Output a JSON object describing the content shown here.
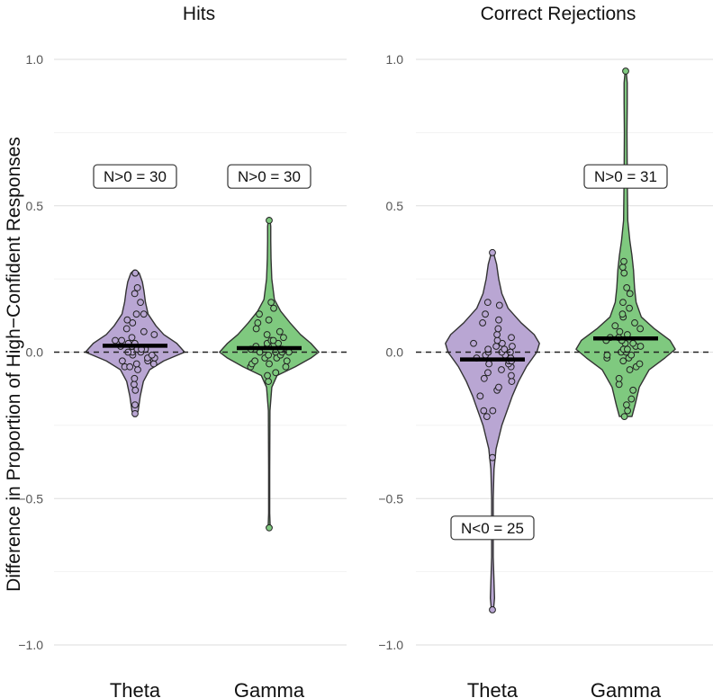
{
  "chart_data": {
    "type": "violin",
    "ylabel": "Difference in Proportion of High−Confident Responses",
    "ylim": [
      -1.0,
      1.0
    ],
    "yticks": [
      1.0,
      0.5,
      0.0,
      -0.5,
      -1.0
    ],
    "ytick_labels": [
      "1.0",
      "0.5",
      "0.0",
      "−0.5",
      "−1.0"
    ],
    "reference_line": 0,
    "colors": {
      "Theta": "#b9a6d3",
      "Gamma": "#7fc97f"
    },
    "panels": [
      {
        "title": "Hits",
        "groups": [
          {
            "name": "Theta",
            "mean": 0.022,
            "annotation": "N>0 =  30",
            "annotation_y": 0.6,
            "density": [
              [
                -0.22,
                0.02
              ],
              [
                -0.2,
                0.06
              ],
              [
                -0.15,
                0.1
              ],
              [
                -0.1,
                0.16
              ],
              [
                -0.06,
                0.28
              ],
              [
                -0.03,
                0.55
              ],
              [
                0.0,
                0.95
              ],
              [
                0.03,
                0.8
              ],
              [
                0.06,
                0.55
              ],
              [
                0.09,
                0.4
              ],
              [
                0.13,
                0.25
              ],
              [
                0.17,
                0.2
              ],
              [
                0.21,
                0.17
              ],
              [
                0.24,
                0.14
              ],
              [
                0.27,
                0.08
              ],
              [
                0.28,
                0.02
              ]
            ],
            "points": [
              -0.21,
              -0.18,
              -0.13,
              -0.11,
              -0.09,
              -0.06,
              -0.05,
              -0.05,
              -0.04,
              -0.04,
              -0.03,
              -0.03,
              -0.02,
              -0.02,
              -0.01,
              -0.01,
              0.0,
              0.0,
              0.0,
              0.01,
              0.01,
              0.01,
              0.02,
              0.02,
              0.03,
              0.03,
              0.04,
              0.04,
              0.05,
              0.06,
              0.07,
              0.08,
              0.1,
              0.11,
              0.13,
              0.13,
              0.17,
              0.2,
              0.22,
              0.27,
              0.27
            ]
          },
          {
            "name": "Gamma",
            "mean": 0.014,
            "annotation": "N>0 =  30",
            "annotation_y": 0.6,
            "density": [
              [
                -0.6,
                0.02
              ],
              [
                -0.55,
                0.01
              ],
              [
                -0.4,
                0.01
              ],
              [
                -0.2,
                0.015
              ],
              [
                -0.12,
                0.05
              ],
              [
                -0.08,
                0.15
              ],
              [
                -0.05,
                0.5
              ],
              [
                -0.02,
                0.8
              ],
              [
                0.0,
                0.95
              ],
              [
                0.03,
                0.8
              ],
              [
                0.06,
                0.6
              ],
              [
                0.1,
                0.4
              ],
              [
                0.14,
                0.22
              ],
              [
                0.18,
                0.1
              ],
              [
                0.25,
                0.05
              ],
              [
                0.32,
                0.035
              ],
              [
                0.38,
                0.03
              ],
              [
                0.43,
                0.03
              ],
              [
                0.46,
                0.01
              ]
            ],
            "points": [
              -0.6,
              -0.1,
              -0.08,
              -0.07,
              -0.05,
              -0.05,
              -0.04,
              -0.04,
              -0.03,
              -0.03,
              -0.02,
              -0.02,
              -0.01,
              -0.01,
              0.0,
              0.0,
              0.0,
              0.0,
              0.01,
              0.01,
              0.01,
              0.02,
              0.02,
              0.02,
              0.03,
              0.03,
              0.04,
              0.04,
              0.05,
              0.06,
              0.07,
              0.08,
              0.1,
              0.11,
              0.13,
              0.15,
              0.17,
              0.45
            ]
          }
        ]
      },
      {
        "title": "Correct Rejections",
        "groups": [
          {
            "name": "Theta",
            "mean": -0.025,
            "annotation": "N<0 =  25",
            "annotation_y": -0.6,
            "density": [
              [
                -0.88,
                0.02
              ],
              [
                -0.84,
                0.04
              ],
              [
                -0.7,
                0.015
              ],
              [
                -0.5,
                0.015
              ],
              [
                -0.4,
                0.03
              ],
              [
                -0.33,
                0.07
              ],
              [
                -0.25,
                0.18
              ],
              [
                -0.2,
                0.28
              ],
              [
                -0.15,
                0.38
              ],
              [
                -0.1,
                0.5
              ],
              [
                -0.05,
                0.65
              ],
              [
                0.0,
                0.85
              ],
              [
                0.03,
                0.9
              ],
              [
                0.06,
                0.8
              ],
              [
                0.1,
                0.55
              ],
              [
                0.15,
                0.3
              ],
              [
                0.2,
                0.18
              ],
              [
                0.25,
                0.12
              ],
              [
                0.3,
                0.08
              ],
              [
                0.34,
                0.02
              ]
            ],
            "points": [
              -0.88,
              -0.36,
              -0.22,
              -0.2,
              -0.2,
              -0.15,
              -0.13,
              -0.12,
              -0.1,
              -0.09,
              -0.08,
              -0.07,
              -0.06,
              -0.05,
              -0.04,
              -0.04,
              -0.03,
              -0.03,
              -0.02,
              -0.02,
              -0.01,
              -0.01,
              0.0,
              0.0,
              0.0,
              0.01,
              0.01,
              0.02,
              0.02,
              0.03,
              0.03,
              0.04,
              0.05,
              0.06,
              0.08,
              0.1,
              0.11,
              0.13,
              0.16,
              0.17,
              0.34
            ]
          },
          {
            "name": "Gamma",
            "mean": 0.047,
            "annotation": "N>0 =  31",
            "annotation_y": 0.6,
            "density": [
              [
                -0.22,
                0.12
              ],
              [
                -0.18,
                0.18
              ],
              [
                -0.12,
                0.26
              ],
              [
                -0.06,
                0.45
              ],
              [
                -0.02,
                0.75
              ],
              [
                0.01,
                0.95
              ],
              [
                0.04,
                0.85
              ],
              [
                0.08,
                0.55
              ],
              [
                0.12,
                0.3
              ],
              [
                0.17,
                0.2
              ],
              [
                0.22,
                0.17
              ],
              [
                0.28,
                0.15
              ],
              [
                0.33,
                0.12
              ],
              [
                0.38,
                0.08
              ],
              [
                0.45,
                0.04
              ],
              [
                0.6,
                0.03
              ],
              [
                0.75,
                0.025
              ],
              [
                0.85,
                0.03
              ],
              [
                0.92,
                0.03
              ],
              [
                0.96,
                0.01
              ]
            ],
            "points": [
              -0.22,
              -0.2,
              -0.18,
              -0.16,
              -0.13,
              -0.11,
              -0.09,
              -0.06,
              -0.05,
              -0.04,
              -0.03,
              -0.02,
              -0.02,
              -0.01,
              -0.01,
              0.0,
              0.0,
              0.01,
              0.01,
              0.02,
              0.02,
              0.03,
              0.03,
              0.04,
              0.04,
              0.05,
              0.05,
              0.06,
              0.07,
              0.08,
              0.09,
              0.1,
              0.12,
              0.13,
              0.15,
              0.17,
              0.2,
              0.22,
              0.27,
              0.29,
              0.31,
              0.96
            ]
          }
        ]
      }
    ]
  }
}
